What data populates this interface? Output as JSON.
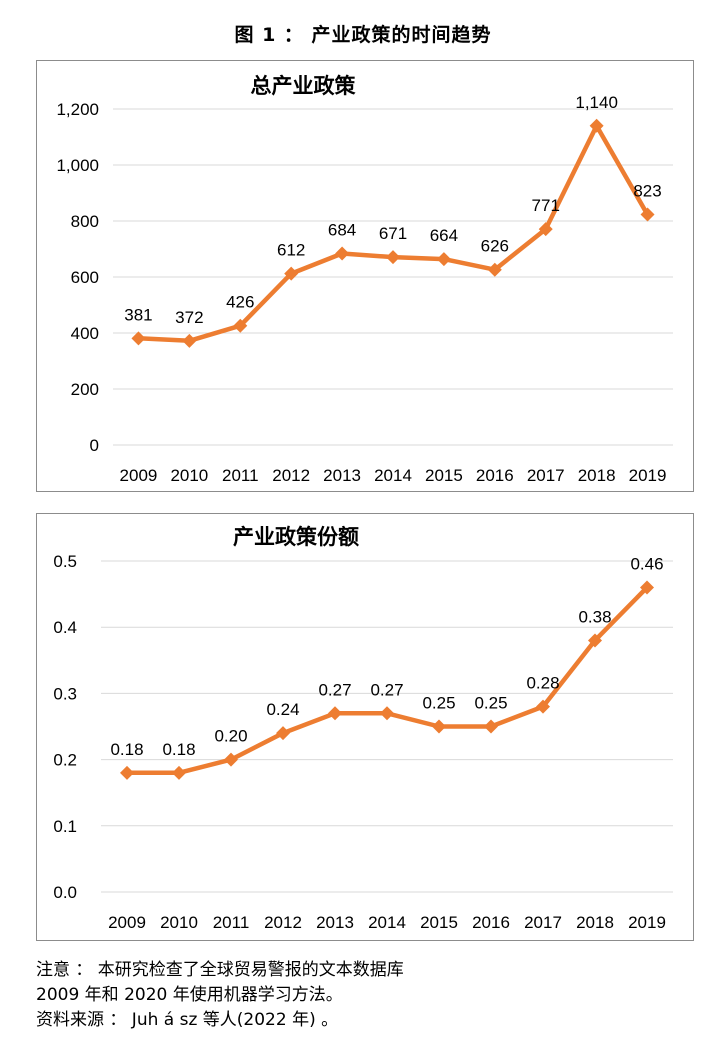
{
  "figure_title": "图 1 ： 产业政策的时间趋势",
  "chart_data": [
    {
      "type": "line",
      "title": "总产业政策",
      "categories": [
        "2009",
        "2010",
        "2011",
        "2012",
        "2013",
        "2014",
        "2015",
        "2016",
        "2017",
        "2018",
        "2019"
      ],
      "values": [
        381,
        372,
        426,
        612,
        684,
        671,
        664,
        626,
        771,
        1140,
        823
      ],
      "data_labels": [
        "381",
        "372",
        "426",
        "612",
        "684",
        "671",
        "664",
        "626",
        "771",
        "1,140",
        "823"
      ],
      "yticks": [
        "0",
        "200",
        "400",
        "600",
        "800",
        "1,000",
        "1,200"
      ],
      "ylim": [
        0,
        1200
      ],
      "grid": true,
      "legend": "none",
      "line_color": "#ED7D31"
    },
    {
      "type": "line",
      "title": "产业政策份额",
      "categories": [
        "2009",
        "2010",
        "2011",
        "2012",
        "2013",
        "2014",
        "2015",
        "2016",
        "2017",
        "2018",
        "2019"
      ],
      "values": [
        0.18,
        0.18,
        0.2,
        0.24,
        0.27,
        0.27,
        0.25,
        0.25,
        0.28,
        0.38,
        0.46
      ],
      "data_labels": [
        "0.18",
        "0.18",
        "0.20",
        "0.24",
        "0.27",
        "0.27",
        "0.25",
        "0.25",
        "0.28",
        "0.38",
        "0.46"
      ],
      "yticks": [
        "0.0",
        "0.1",
        "0.2",
        "0.3",
        "0.4",
        "0.5"
      ],
      "ylim": [
        0,
        0.5
      ],
      "grid": true,
      "legend": "none",
      "line_color": "#ED7D31"
    }
  ],
  "notes": [
    "注意 ： 本研究检查了全球贸易警报的文本数据库",
    "2009 年和 2020 年使用机器学习方法。",
    "资料来源 ： Juh á sz 等人(2022 年) 。"
  ]
}
